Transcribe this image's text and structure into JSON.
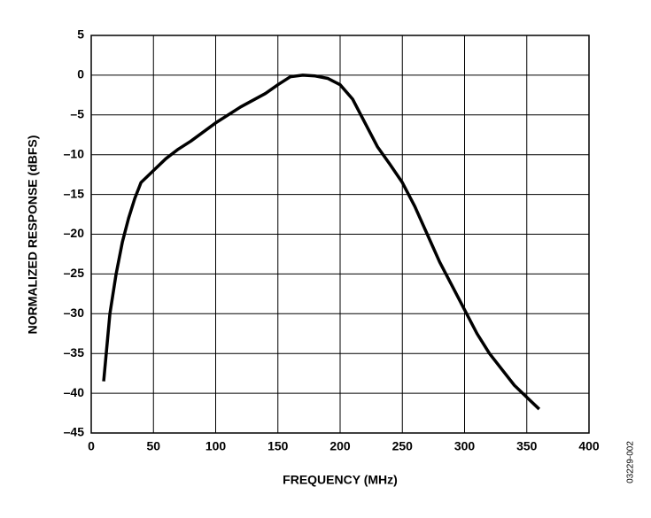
{
  "chart_data": {
    "type": "line",
    "x_label": "FREQUENCY (MHz)",
    "y_label": "NORMALIZED RESPONSE (dBFS)",
    "figure_id": "03229-002",
    "x": [
      10,
      15,
      20,
      25,
      30,
      35,
      40,
      50,
      60,
      70,
      80,
      100,
      120,
      140,
      150,
      160,
      170,
      180,
      190,
      200,
      210,
      220,
      230,
      240,
      250,
      260,
      270,
      280,
      290,
      300,
      310,
      320,
      330,
      340,
      350,
      360
    ],
    "series": [
      {
        "color": "#000000",
        "values": [
          -38.5,
          -30,
          -25,
          -21,
          -18,
          -15.5,
          -13.5,
          -12,
          -10.5,
          -9.3,
          -8.3,
          -6,
          -4,
          -2.3,
          -1.2,
          -0.2,
          0,
          -0.1,
          -0.4,
          -1.2,
          -3,
          -6,
          -9,
          -11.2,
          -13.5,
          -16.5,
          -20,
          -23.5,
          -26.5,
          -29.5,
          -32.5,
          -35,
          -37,
          -39,
          -40.5,
          -42
        ]
      }
    ],
    "xlim": [
      0,
      400
    ],
    "xticks": [
      0,
      50,
      100,
      150,
      200,
      250,
      300,
      350,
      400
    ],
    "ylim": [
      -45,
      5
    ],
    "yticks": [
      {
        "value": -45,
        "label": "–45"
      },
      {
        "value": -40,
        "label": "–40"
      },
      {
        "value": -35,
        "label": "–35"
      },
      {
        "value": -30,
        "label": "–30"
      },
      {
        "value": -25,
        "label": "–25"
      },
      {
        "value": -20,
        "label": "–20"
      },
      {
        "value": -15,
        "label": "–15"
      },
      {
        "value": -10,
        "label": "–10"
      },
      {
        "value": -5,
        "label": "–5"
      },
      0,
      5
    ],
    "grid": true
  }
}
